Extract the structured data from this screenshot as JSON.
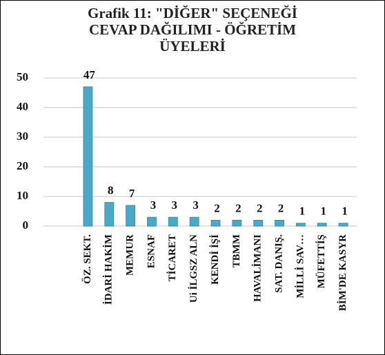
{
  "chart_data": {
    "type": "bar",
    "title": "Grafik 11: \"DİĞER\" SEÇENEĞİ\nCEVAP DAĞILIMI - ÖĞRETİM\nÜYELERİ",
    "categories": [
      "ÖZ. SEKT.",
      "İDARİ HAKİM",
      "MEMUR",
      "ESNAF",
      "TİCARET",
      "Ui İLGSZ ALN",
      "KENDİ İŞİ",
      "TBMM",
      "HAVALİMANI",
      "SAT. DANIŞ.",
      "MİLLİ SAV…",
      "MÜFETTİŞ",
      "BİM'DE KASYR"
    ],
    "values": [
      47,
      8,
      7,
      3,
      3,
      3,
      2,
      2,
      2,
      2,
      1,
      1,
      1
    ],
    "color": "#4aa9c6",
    "ylim": [
      0,
      50
    ],
    "yticks": [
      0,
      10,
      20,
      30,
      40,
      50
    ],
    "grid": true
  }
}
